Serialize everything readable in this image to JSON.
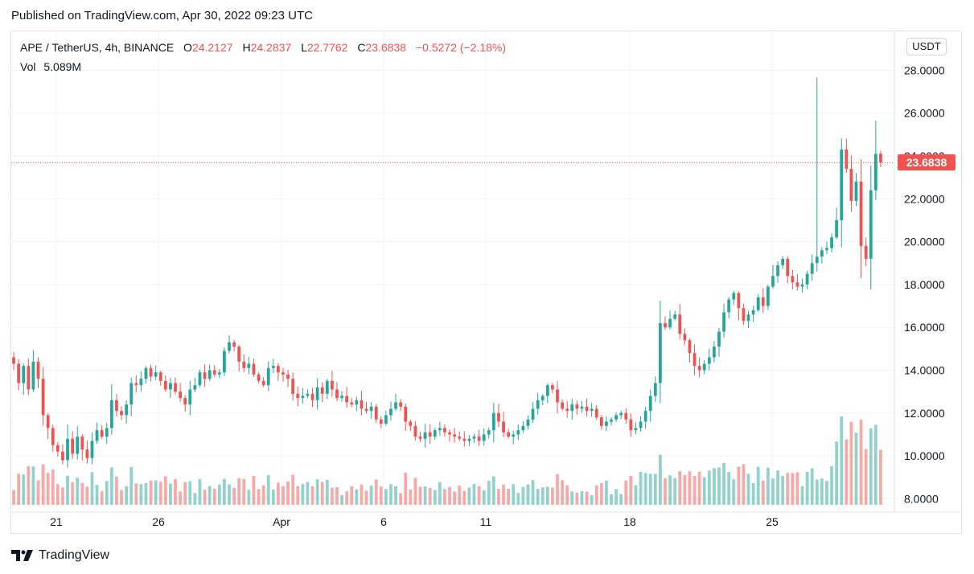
{
  "published": "Published on TradingView.com, Apr 30, 2022 09:23 UTC",
  "legend": {
    "symbol": "APE / TetherUS, 4h, BINANCE",
    "o_label": "O",
    "o_value": "24.2127",
    "h_label": "H",
    "h_value": "24.2837",
    "l_label": "L",
    "l_value": "22.7762",
    "c_label": "C",
    "c_value": "23.6838",
    "change": "−0.5272 (−2.18%)"
  },
  "volume": {
    "label": "Vol",
    "value": "5.089M"
  },
  "currency": "USDT",
  "last_price_tag": "23.6838",
  "brand": "TradingView",
  "colors": {
    "up": "#26a69a",
    "down": "#ef5350",
    "grid": "#f0f3fa",
    "text": "#131722"
  },
  "chart_data": {
    "type": "candlestick",
    "symbol": "APE / TetherUS",
    "interval": "4h",
    "exchange": "BINANCE",
    "ylim": [
      8.0,
      28.5
    ],
    "y_ticks": [
      "28.0000",
      "26.0000",
      "24.0000",
      "22.0000",
      "20.0000",
      "18.0000",
      "16.0000",
      "14.0000",
      "12.0000",
      "10.0000",
      "8.0000"
    ],
    "x_ticks": [
      "21",
      "26",
      "Apr",
      "6",
      "11",
      "18",
      "25"
    ],
    "last_price": 23.6838,
    "grid": true,
    "closes": [
      14.3,
      13.4,
      14.2,
      13.1,
      14.4,
      13.6,
      11.9,
      11.3,
      10.5,
      10.2,
      9.8,
      10.8,
      10.1,
      10.9,
      10.3,
      9.9,
      10.7,
      11.2,
      10.9,
      11.3,
      12.6,
      12.1,
      11.9,
      12.4,
      13.4,
      13.3,
      13.6,
      14.1,
      13.7,
      13.9,
      13.5,
      13.1,
      13.4,
      13.0,
      12.7,
      12.4,
      13.1,
      13.3,
      13.9,
      13.6,
      14.0,
      13.8,
      13.9,
      14.9,
      15.3,
      15.1,
      14.4,
      14.1,
      14.3,
      13.8,
      13.5,
      13.3,
      14.1,
      14.2,
      13.9,
      13.8,
      13.6,
      12.9,
      12.7,
      12.8,
      12.9,
      12.6,
      13.2,
      12.9,
      13.5,
      13.1,
      12.7,
      12.8,
      12.5,
      12.4,
      12.6,
      12.2,
      12.1,
      12.3,
      11.7,
      11.5,
      11.9,
      12.2,
      12.5,
      12.3,
      11.6,
      11.4,
      10.9,
      10.8,
      11.1,
      10.9,
      11.2,
      11.3,
      11.1,
      11.0,
      10.9,
      10.8,
      10.7,
      10.8,
      10.9,
      10.7,
      11.0,
      11.2,
      12.0,
      11.6,
      11.1,
      10.9,
      11.0,
      11.2,
      11.4,
      11.7,
      12.2,
      12.6,
      12.8,
      13.3,
      13.1,
      12.5,
      12.2,
      12.1,
      12.4,
      12.2,
      12.3,
      12.1,
      12.2,
      11.8,
      11.4,
      11.6,
      11.7,
      11.9,
      12.0,
      11.7,
      11.2,
      11.3,
      11.6,
      12.1,
      12.8,
      13.4,
      16.2,
      16.0,
      16.4,
      16.6,
      15.7,
      15.4,
      14.8,
      14.2,
      14.0,
      14.3,
      14.6,
      15.1,
      15.8,
      16.7,
      17.3,
      17.6,
      16.9,
      16.3,
      16.6,
      16.8,
      17.4,
      17.0,
      17.9,
      18.4,
      18.9,
      19.2,
      18.4,
      18.1,
      17.9,
      18.0,
      18.5,
      19.0,
      19.3,
      19.6,
      19.7,
      20.2,
      21.0,
      24.3,
      23.4,
      21.9,
      22.8,
      19.8,
      19.2,
      22.4,
      24.1,
      23.7
    ],
    "volume_axis": "relative"
  }
}
